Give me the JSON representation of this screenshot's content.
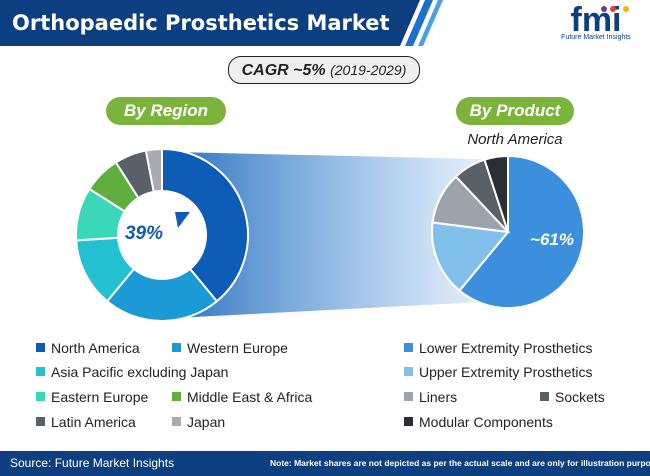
{
  "header": {
    "title": "Orthopaedic Prosthetics Market",
    "logo_letters": "fmi",
    "logo_text": "Future Market Insights"
  },
  "cagr": {
    "main": "CAGR ~5%",
    "period": "(2019-2029)"
  },
  "chart_data": [
    {
      "type": "pie",
      "title": "By Region",
      "center_label": "39%",
      "categories": [
        "North America",
        "Western Europe",
        "Asia Pacific excluding Japan",
        "Eastern Europe",
        "Middle East & Africa",
        "Latin America",
        "Japan"
      ],
      "values": [
        39,
        22,
        13,
        10,
        7,
        6,
        3
      ],
      "colors": [
        "#0d5cb5",
        "#1b9ad6",
        "#23c0d0",
        "#3ad8b8",
        "#5fae3e",
        "#5a6068",
        "#a7abb2"
      ]
    },
    {
      "type": "pie",
      "title": "By Product",
      "subtitle": "North America",
      "center_label": "~61%",
      "categories": [
        "Lower Extremity Prosthetics",
        "Upper Extremity Prosthetics",
        "Liners",
        "Sockets",
        "Modular Components"
      ],
      "values": [
        61,
        16,
        11,
        7,
        5
      ],
      "colors": [
        "#3c8fdc",
        "#82c0ec",
        "#9ca3ab",
        "#5a6068",
        "#2a2f37"
      ]
    }
  ],
  "footer": {
    "source": "Source: Future Market Insights",
    "note": "Note: Market shares are not depicted as per the actual scale and are only for illustration purposes."
  }
}
